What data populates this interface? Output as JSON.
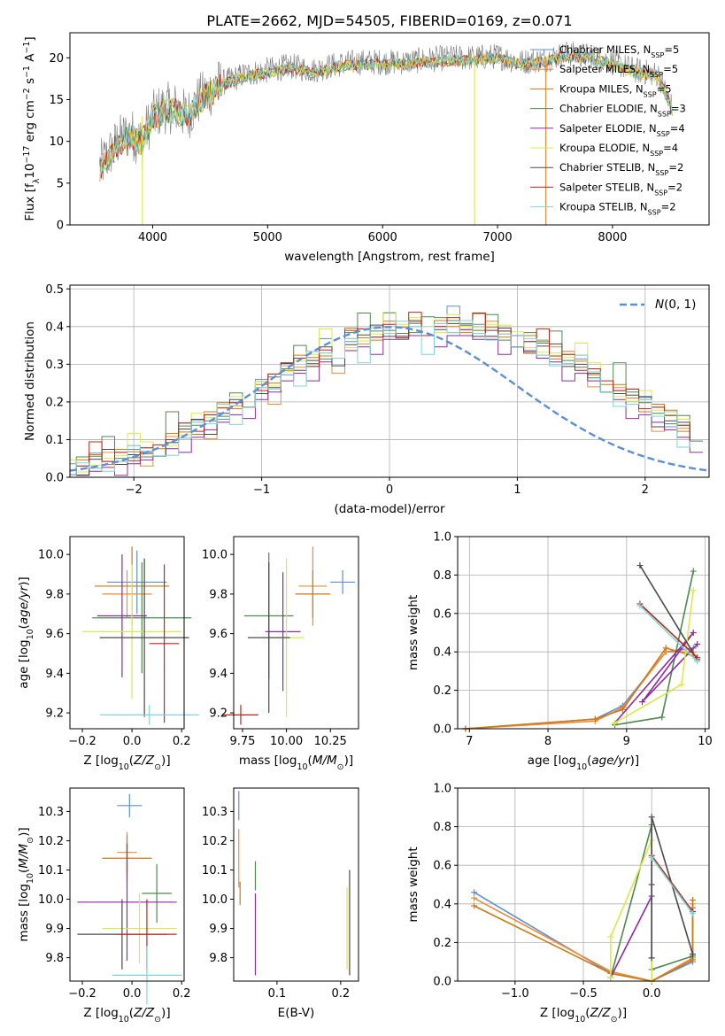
{
  "title": "PLATE=2662, MJD=54505, FIBERID=0169, z=0.071",
  "chart_data": [
    {
      "type": "line",
      "xlabel": "wavelength [Angstrom, rest frame]",
      "ylabel": "Flux [f_λ10^-17 erg cm^-2 s^-1 A^-1]",
      "xlim": [
        3280,
        8840
      ],
      "ylim": [
        0,
        23
      ],
      "xticks": [
        4000,
        5000,
        6000,
        7000,
        8000
      ],
      "yticks": [
        0,
        5,
        10,
        15,
        20
      ],
      "grid": false,
      "legend_position": "right",
      "envelope_x": [
        3540,
        3600,
        3700,
        3800,
        3900,
        4000,
        4100,
        4200,
        4300,
        4400,
        4600,
        4800,
        5000,
        5200,
        5400,
        5600,
        5800,
        6000,
        6200,
        6400,
        6600,
        6800,
        7000,
        7200,
        7400,
        7600,
        7800,
        8000,
        8200,
        8400,
        8520
      ],
      "envelope_y": [
        7,
        8,
        10,
        11,
        10,
        13,
        14,
        14,
        13,
        15,
        17,
        18,
        18.5,
        19,
        18.5,
        19.2,
        19.5,
        19.5,
        19.5,
        19.8,
        20,
        20,
        20.2,
        19.5,
        19.8,
        20.5,
        20.2,
        19.5,
        18.5,
        18,
        14
      ]
    },
    {
      "type": "bar",
      "xlabel": "(data-model)/error",
      "ylabel": "Normed distribution",
      "xlim": [
        -2.5,
        2.5
      ],
      "ylim": [
        0,
        0.51
      ],
      "xticks": [
        -2,
        -1,
        0,
        1,
        2
      ],
      "yticks": [
        0.0,
        0.1,
        0.2,
        0.3,
        0.4,
        0.5
      ],
      "grid": true,
      "legend": "N(0,1)",
      "legend_position": "top-right",
      "bin_width": 0.1,
      "typical_values": [
        0.03,
        0.03,
        0.04,
        0.05,
        0.05,
        0.06,
        0.07,
        0.08,
        0.1,
        0.12,
        0.13,
        0.15,
        0.17,
        0.19,
        0.21,
        0.23,
        0.25,
        0.28,
        0.3,
        0.31,
        0.33,
        0.34,
        0.36,
        0.37,
        0.38,
        0.39,
        0.39,
        0.4,
        0.4,
        0.4,
        0.4,
        0.4,
        0.39,
        0.39,
        0.38,
        0.37,
        0.36,
        0.34,
        0.33,
        0.31,
        0.3,
        0.28,
        0.25,
        0.23,
        0.21,
        0.19,
        0.17,
        0.15,
        0.13,
        0.12,
        0.1
      ]
    },
    {
      "type": "scatter",
      "xlabel": "Z [log10(Z/Z⊙)]",
      "ylabel": "age  [log10(age/yr)]",
      "xlim": [
        -0.25,
        0.21
      ],
      "ylim": [
        9.12,
        10.09
      ],
      "xticks": [
        -0.2,
        0.0,
        0.2
      ],
      "yticks": [
        9.2,
        9.4,
        9.6,
        9.8,
        10.0
      ],
      "points": [
        {
          "x": 0.02,
          "y": 9.86,
          "xerr": 0.12,
          "yerr": 0.16
        },
        {
          "x": -0.02,
          "y": 9.8,
          "xerr": 0.1,
          "yerr": 0.12
        },
        {
          "x": 0.0,
          "y": 9.84,
          "xerr": 0.15,
          "yerr": 0.2
        },
        {
          "x": 0.04,
          "y": 9.68,
          "xerr": 0.2,
          "yerr": 0.28
        },
        {
          "x": -0.04,
          "y": 9.69,
          "xerr": 0.1,
          "yerr": 0.31
        },
        {
          "x": 0.0,
          "y": 9.61,
          "xerr": 0.2,
          "yerr": 0.34
        },
        {
          "x": 0.05,
          "y": 9.58,
          "xerr": 0.18,
          "yerr": 0.4
        },
        {
          "x": 0.13,
          "y": 9.55,
          "xerr": 0.06,
          "yerr": 0.4
        },
        {
          "x": 0.07,
          "y": 9.19,
          "xerr": 0.2,
          "yerr": 0.05
        }
      ]
    },
    {
      "type": "scatter",
      "xlabel": "mass [log10(M/M⊙)]",
      "ylabel": "",
      "xlim": [
        9.7,
        10.41
      ],
      "ylim": [
        9.12,
        10.09
      ],
      "xticks": [
        9.75,
        10.0,
        10.25
      ],
      "yticks": [
        9.2,
        9.4,
        9.6,
        9.8,
        10.0
      ],
      "points": [
        {
          "x": 10.32,
          "y": 9.86,
          "xerr": 0.07,
          "yerr": 0.06
        },
        {
          "x": 10.15,
          "y": 9.84,
          "xerr": 0.08,
          "yerr": 0.2
        },
        {
          "x": 10.15,
          "y": 9.8,
          "xerr": 0.1,
          "yerr": 0.12
        },
        {
          "x": 9.9,
          "y": 9.69,
          "xerr": 0.14,
          "yerr": 0.32
        },
        {
          "x": 9.98,
          "y": 9.61,
          "xerr": 0.1,
          "yerr": 0.3
        },
        {
          "x": 10.0,
          "y": 9.58,
          "xerr": 0.1,
          "yerr": 0.4
        },
        {
          "x": 9.9,
          "y": 9.58,
          "xerr": 0.12,
          "yerr": 0.38
        },
        {
          "x": 9.74,
          "y": 9.19,
          "xerr": 0.1,
          "yerr": 0.05
        }
      ]
    },
    {
      "type": "line",
      "xlabel": "age  [log10(age/yr)]",
      "ylabel": "mass weight",
      "xlim": [
        6.85,
        10.05
      ],
      "ylim": [
        0,
        1
      ],
      "xticks": [
        7,
        8,
        9,
        10
      ],
      "yticks": [
        0.0,
        0.2,
        0.4,
        0.6,
        0.8,
        1.0
      ],
      "grid": true,
      "series": [
        {
          "x": [
            6.95,
            8.6,
            8.95,
            9.5,
            9.85
          ],
          "y": [
            0.0,
            0.05,
            0.12,
            0.4,
            0.42
          ]
        },
        {
          "x": [
            6.95,
            8.6,
            8.95,
            9.5,
            9.85
          ],
          "y": [
            0.0,
            0.04,
            0.11,
            0.4,
            0.4
          ]
        },
        {
          "x": [
            6.95,
            8.6,
            8.95,
            9.5,
            9.85
          ],
          "y": [
            0.0,
            0.05,
            0.1,
            0.42,
            0.38
          ]
        },
        {
          "x": [
            8.85,
            9.45,
            9.85
          ],
          "y": [
            0.02,
            0.06,
            0.82
          ]
        },
        {
          "x": [
            8.85,
            9.85,
            9.2,
            9.9
          ],
          "y": [
            0.03,
            0.5,
            0.14,
            0.44
          ]
        },
        {
          "x": [
            8.85,
            9.7,
            9.85
          ],
          "y": [
            0.03,
            0.23,
            0.72
          ]
        },
        {
          "x": [
            9.17,
            9.9
          ],
          "y": [
            0.85,
            0.36
          ]
        },
        {
          "x": [
            9.17,
            9.9
          ],
          "y": [
            0.65,
            0.37
          ]
        },
        {
          "x": [
            9.17,
            9.9
          ],
          "y": [
            0.64,
            0.35
          ]
        }
      ]
    },
    {
      "type": "scatter",
      "xlabel": "Z [log10(Z/Z⊙)]",
      "ylabel": "mass [log10(M/M⊙)]",
      "xlim": [
        -0.25,
        0.21
      ],
      "ylim": [
        9.72,
        10.38
      ],
      "xticks": [
        -0.2,
        0.0,
        0.2
      ],
      "yticks": [
        9.8,
        9.9,
        10.0,
        10.1,
        10.2,
        10.3
      ],
      "points": [
        {
          "x": -0.01,
          "y": 10.32,
          "xerr": 0.05,
          "yerr": 0.04
        },
        {
          "x": -0.02,
          "y": 10.16,
          "xerr": 0.04,
          "yerr": 0.07
        },
        {
          "x": -0.02,
          "y": 10.14,
          "xerr": 0.1,
          "yerr": 0.08
        },
        {
          "x": 0.1,
          "y": 10.02,
          "xerr": 0.06,
          "yerr": 0.1
        },
        {
          "x": -0.02,
          "y": 9.99,
          "xerr": 0.2,
          "yerr": 0.2
        },
        {
          "x": 0.03,
          "y": 9.9,
          "xerr": 0.15,
          "yerr": 0.12
        },
        {
          "x": -0.04,
          "y": 9.88,
          "xerr": 0.18,
          "yerr": 0.12
        },
        {
          "x": 0.06,
          "y": 9.88,
          "xerr": 0.12,
          "yerr": 0.12
        },
        {
          "x": 0.06,
          "y": 9.74,
          "xerr": 0.14,
          "yerr": 0.1
        }
      ]
    },
    {
      "type": "scatter",
      "xlabel": "E(B-V)",
      "ylabel": "",
      "xlim": [
        0.032,
        0.228
      ],
      "ylim": [
        9.72,
        10.38
      ],
      "xticks": [
        0.1,
        0.2
      ],
      "yticks": [
        9.8,
        9.9,
        10.0,
        10.1,
        10.2,
        10.3
      ],
      "points": [
        {
          "x": 0.04,
          "y": 10.32,
          "yerr": 0.05
        },
        {
          "x": 0.04,
          "y": 10.14,
          "yerr": 0.1
        },
        {
          "x": 0.042,
          "y": 10.02,
          "yerr": 0.04
        },
        {
          "x": 0.066,
          "y": 10.08,
          "yerr": 0.05
        },
        {
          "x": 0.066,
          "y": 9.88,
          "yerr": 0.14
        },
        {
          "x": 0.21,
          "y": 9.9,
          "yerr": 0.14
        },
        {
          "x": 0.214,
          "y": 9.92,
          "yerr": 0.18
        }
      ]
    },
    {
      "type": "line",
      "xlabel": "Z [log10(Z/Z⊙)]",
      "ylabel": "mass weight",
      "xlim": [
        -1.42,
        0.42
      ],
      "ylim": [
        0,
        1
      ],
      "xticks": [
        -1.0,
        -0.5,
        0.0
      ],
      "yticks": [
        0.0,
        0.2,
        0.4,
        0.6,
        0.8,
        1.0
      ],
      "grid": true,
      "series": [
        {
          "x": [
            -1.3,
            -0.3,
            0.0,
            0.3,
            0.3
          ],
          "y": [
            0.46,
            0.04,
            0.0,
            0.1,
            0.38
          ]
        },
        {
          "x": [
            -1.3,
            -0.3,
            0.0,
            0.3,
            0.3
          ],
          "y": [
            0.43,
            0.05,
            0.0,
            0.12,
            0.4
          ]
        },
        {
          "x": [
            -1.3,
            -0.3,
            0.0,
            0.3,
            0.3
          ],
          "y": [
            0.39,
            0.04,
            0.0,
            0.11,
            0.42
          ]
        },
        {
          "x": [
            -0.3,
            0.0,
            0.0,
            0.3
          ],
          "y": [
            0.02,
            0.81,
            0.06,
            0.13
          ]
        },
        {
          "x": [
            -0.3,
            0.0,
            0.0
          ],
          "y": [
            0.02,
            0.44,
            0.5
          ]
        },
        {
          "x": [
            -0.3,
            -0.3,
            0.0,
            0.0
          ],
          "y": [
            0.02,
            0.23,
            0.73,
            0.0
          ]
        },
        {
          "x": [
            0.0,
            0.0,
            0.3
          ],
          "y": [
            0.12,
            0.85,
            0.14
          ]
        },
        {
          "x": [
            0.0,
            0.3
          ],
          "y": [
            0.65,
            0.36
          ]
        },
        {
          "x": [
            0.0,
            0.3
          ],
          "y": [
            0.64,
            0.35
          ]
        }
      ]
    }
  ],
  "legend_entries": [
    {
      "label": "Chabrier MILES, N",
      "sub": "SSP",
      "suffix": "=5"
    },
    {
      "label": "Salpeter MILES, N",
      "sub": "SSP",
      "suffix": "=5"
    },
    {
      "label": "Kroupa MILES, N",
      "sub": "SSP",
      "suffix": "=5"
    },
    {
      "label": "Chabrier ELODIE, N",
      "sub": "SSP",
      "suffix": "=3"
    },
    {
      "label": "Salpeter ELODIE, N",
      "sub": "SSP",
      "suffix": "=4"
    },
    {
      "label": "Kroupa ELODIE, N",
      "sub": "SSP",
      "suffix": "=4"
    },
    {
      "label": "Chabrier STELIB, N",
      "sub": "SSP",
      "suffix": "=2"
    },
    {
      "label": "Salpeter STELIB, N",
      "sub": "SSP",
      "suffix": "=2"
    },
    {
      "label": "Kroupa STELIB, N",
      "sub": "SSP",
      "suffix": "=2"
    }
  ],
  "colors": {
    "series": [
      "#5b8fdc",
      "#f08a3e",
      "#d17a10",
      "#4e8a4e",
      "#8e2aa6",
      "#dce84a",
      "#4a4a4a",
      "#c0241b",
      "#7fd6d6"
    ],
    "data": "#7a7a7a",
    "normal": "#5b8fdc",
    "grid": "#b0b0b0"
  }
}
